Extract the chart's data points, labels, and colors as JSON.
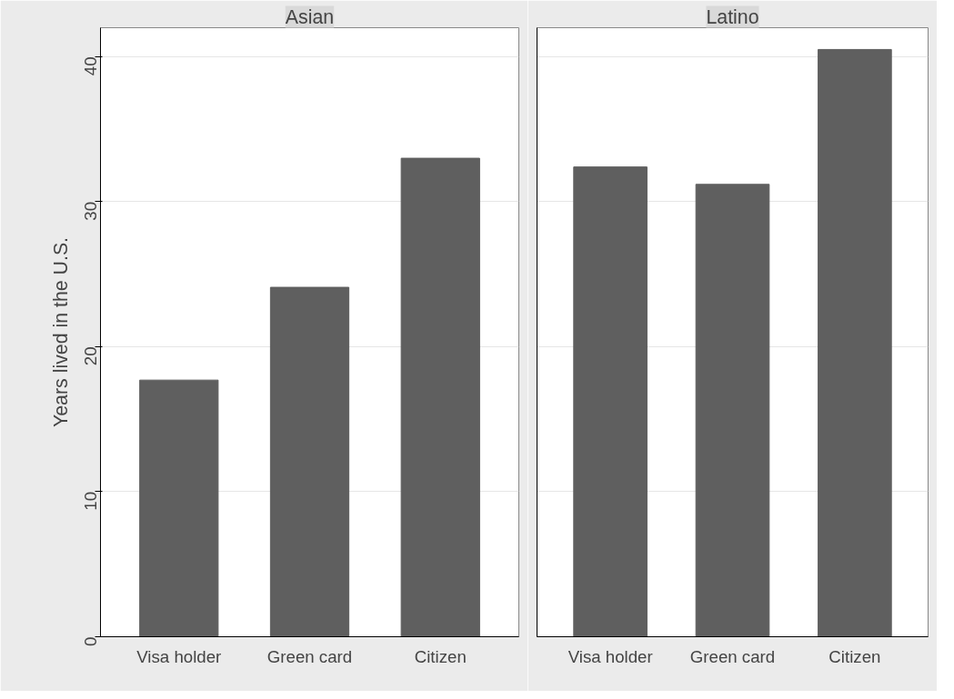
{
  "chart_data": [
    {
      "type": "bar",
      "title": "Asian",
      "ylabel": "Years lived in the U.S.",
      "categories": [
        "Visa holder",
        "Green card",
        "Citizen"
      ],
      "values": [
        17.7,
        24.1,
        33.0
      ],
      "color": "#5f5f5f",
      "ylim": [
        0,
        42
      ],
      "yticks": [
        0,
        10,
        20,
        30,
        40
      ],
      "grid": "y"
    },
    {
      "type": "bar",
      "title": "Latino",
      "categories": [
        "Visa holder",
        "Green card",
        "Citizen"
      ],
      "values": [
        32.4,
        31.2,
        40.5
      ],
      "color": "#5f5f5f",
      "ylim": [
        0,
        42
      ],
      "yticks": [
        0,
        10,
        20,
        30,
        40
      ],
      "grid": "y",
      "tick_labels": "x"
    }
  ]
}
